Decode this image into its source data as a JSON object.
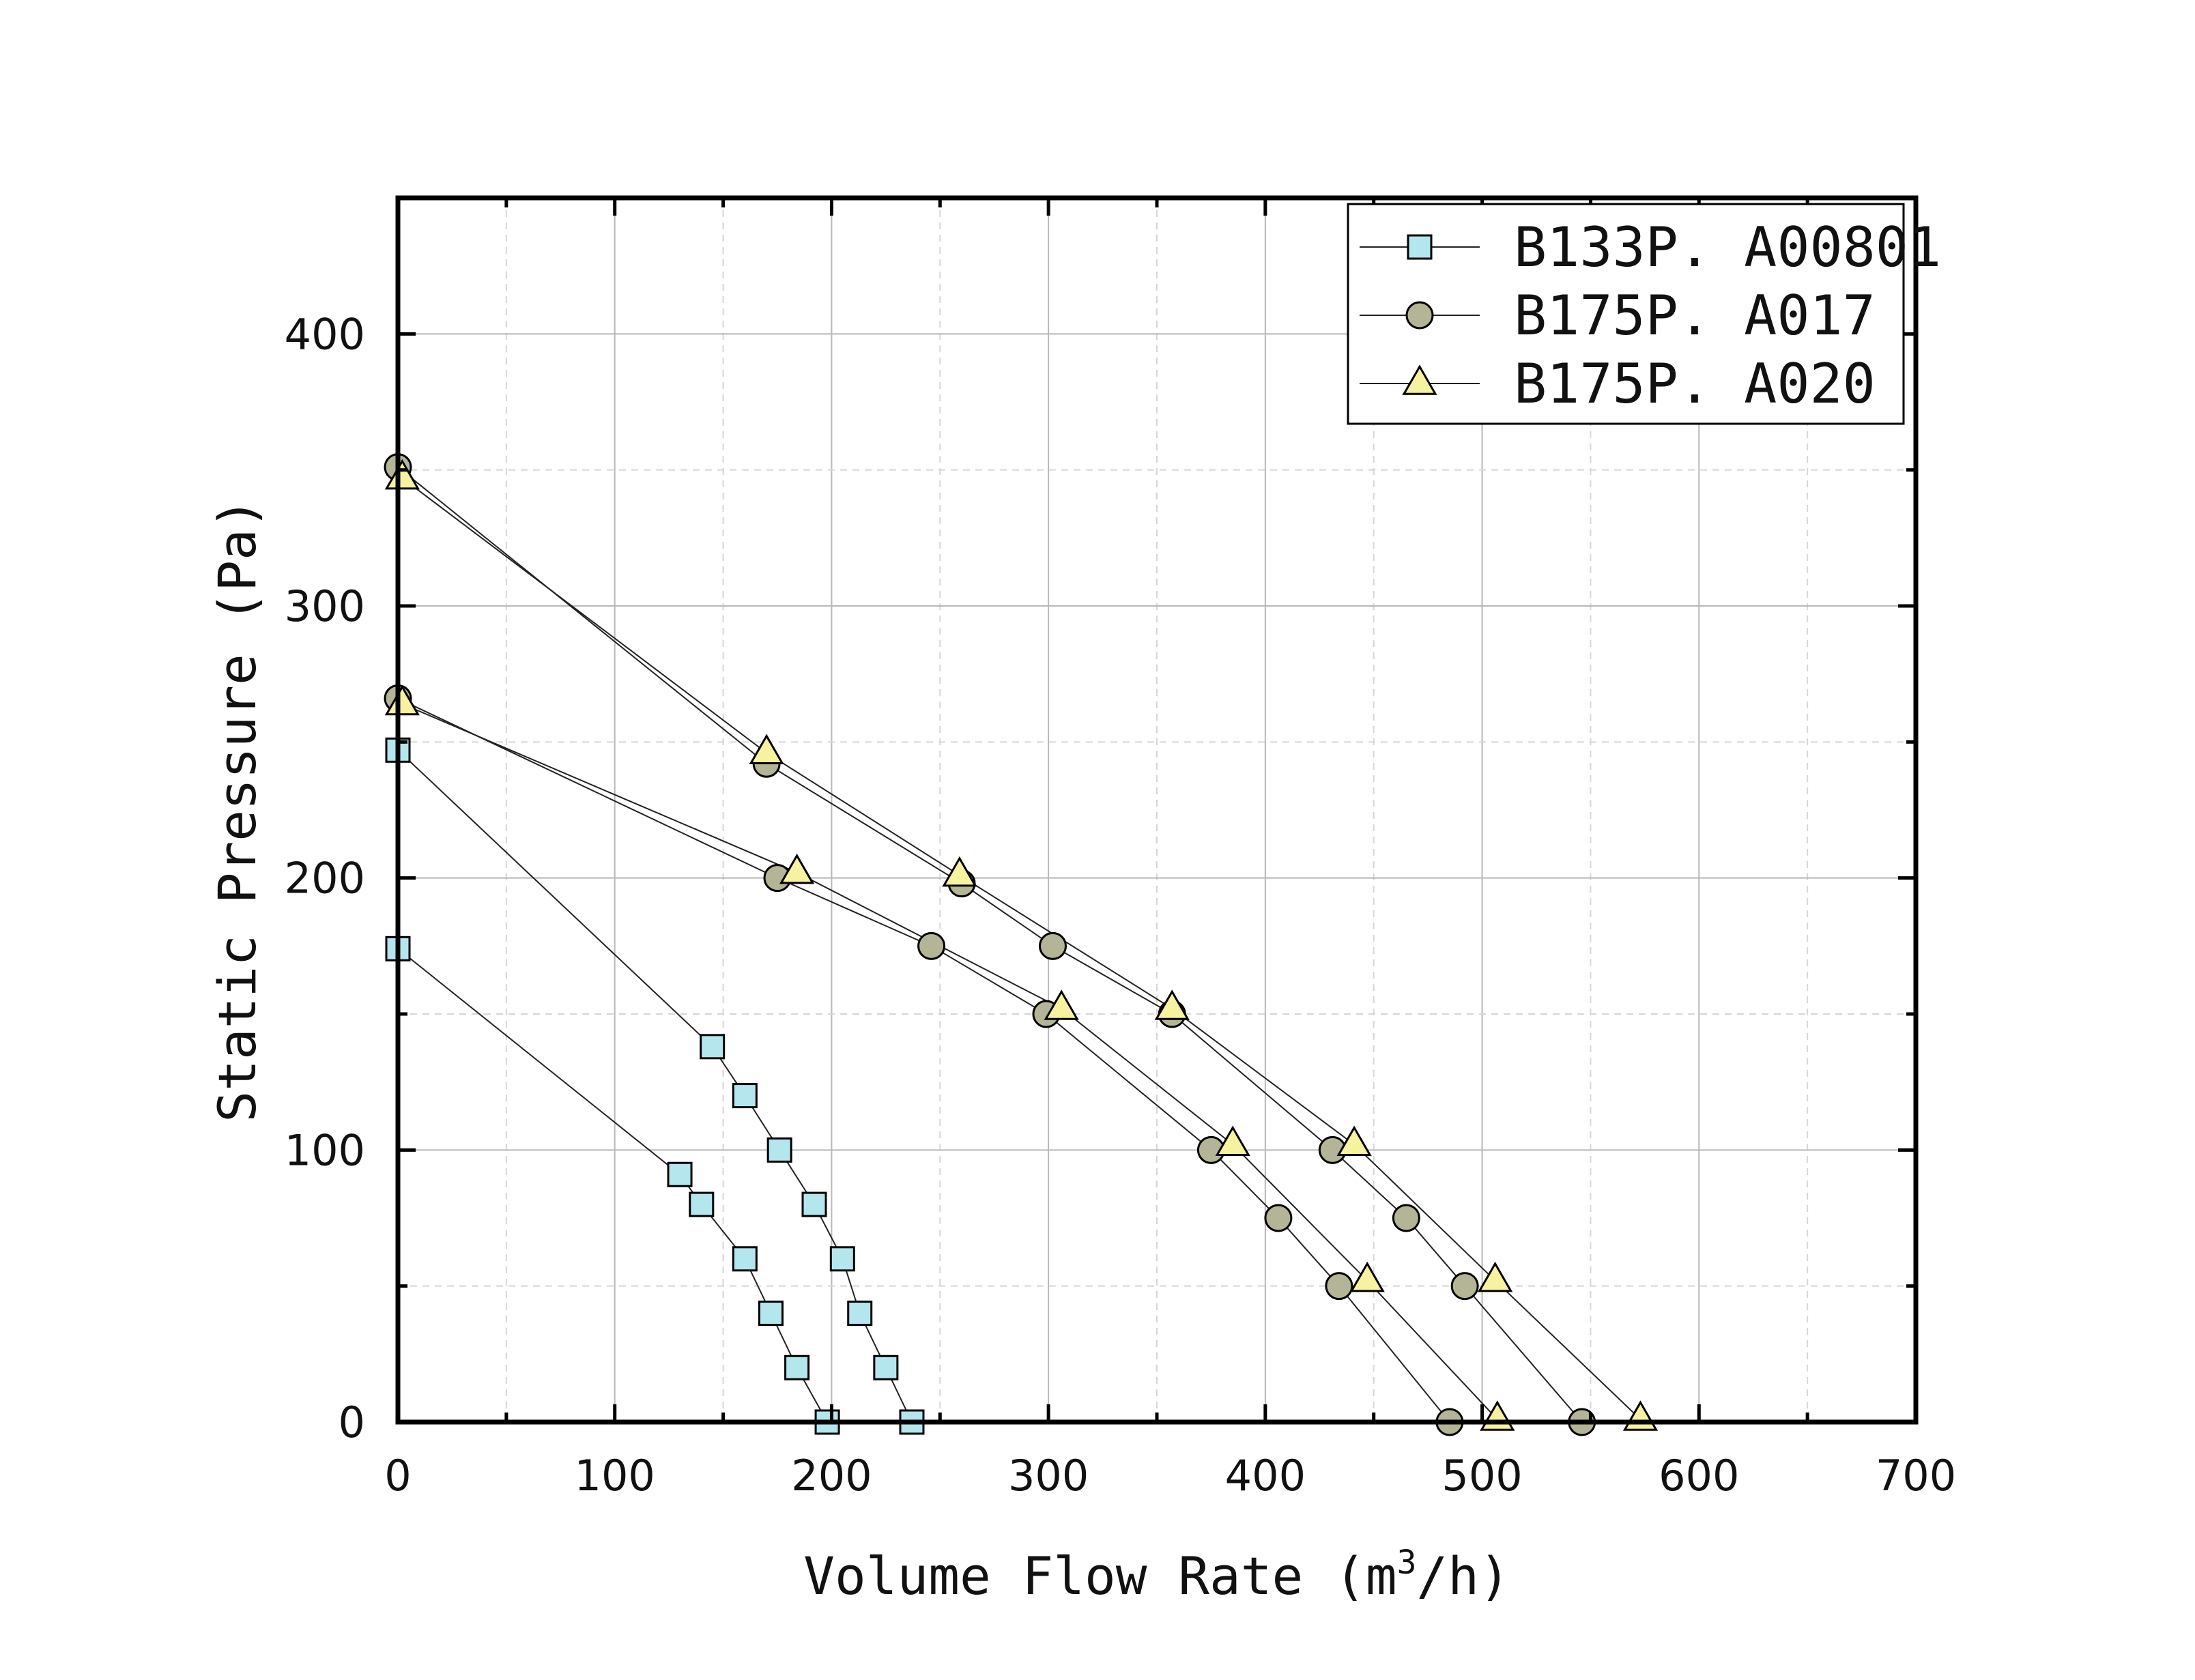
{
  "chart_data": {
    "type": "scatter",
    "title": "",
    "xlabel": "Volume Flow Rate (m",
    "xlabel_sup": "3",
    "xlabel_tail": "/h)",
    "ylabel": "Static Pressure (Pa)",
    "xlim": [
      0,
      700
    ],
    "ylim": [
      0,
      450
    ],
    "xticks": [
      "0",
      "100",
      "200",
      "300",
      "400",
      "500",
      "600",
      "700"
    ],
    "yticks": [
      "0",
      "100",
      "200",
      "300",
      "400"
    ],
    "grid": true,
    "legend_position": "top-right",
    "legend": [
      {
        "name": "B133P. A00801",
        "marker": "square",
        "color": "#b4e6ee"
      },
      {
        "name": "B175P. A017",
        "marker": "circle",
        "color": "#b4b496"
      },
      {
        "name": "B175P. A020",
        "marker": "triangle",
        "color": "#f6f2a0"
      }
    ],
    "series": [
      {
        "legend_index": 0,
        "marker": "square",
        "color": "#b4e6ee",
        "points": [
          [
            0,
            174
          ],
          [
            130,
            91
          ],
          [
            140,
            80
          ],
          [
            160,
            60
          ],
          [
            172,
            40
          ],
          [
            184,
            20
          ],
          [
            198,
            0
          ]
        ]
      },
      {
        "legend_index": 0,
        "marker": "square",
        "color": "#b4e6ee",
        "points": [
          [
            0,
            247
          ],
          [
            145,
            138
          ],
          [
            160,
            120
          ],
          [
            176,
            100
          ],
          [
            192,
            80
          ],
          [
            205,
            60
          ],
          [
            213,
            40
          ],
          [
            225,
            20
          ],
          [
            237,
            0
          ]
        ]
      },
      {
        "legend_index": 1,
        "marker": "circle",
        "color": "#b4b496",
        "points": [
          [
            0,
            351
          ],
          [
            170,
            242
          ],
          [
            260,
            198
          ],
          [
            302,
            175
          ],
          [
            357,
            150
          ],
          [
            431,
            100
          ],
          [
            465,
            75
          ],
          [
            492,
            50
          ],
          [
            546,
            0
          ]
        ]
      },
      {
        "legend_index": 2,
        "marker": "triangle",
        "color": "#f6f2a0",
        "points": [
          [
            2,
            347
          ],
          [
            170,
            246
          ],
          [
            259,
            201
          ],
          [
            357,
            152
          ],
          [
            441,
            102
          ],
          [
            506,
            52
          ],
          [
            573,
            1
          ]
        ]
      },
      {
        "legend_index": 1,
        "marker": "circle",
        "color": "#b4b496",
        "points": [
          [
            0,
            266
          ],
          [
            175,
            200
          ],
          [
            246,
            175
          ],
          [
            299,
            150
          ],
          [
            375,
            100
          ],
          [
            406,
            75
          ],
          [
            434,
            50
          ],
          [
            485,
            0
          ]
        ]
      },
      {
        "legend_index": 2,
        "marker": "triangle",
        "color": "#f6f2a0",
        "points": [
          [
            2,
            264
          ],
          [
            184,
            202
          ],
          [
            306,
            152
          ],
          [
            385,
            102
          ],
          [
            447,
            52
          ],
          [
            507,
            1
          ]
        ]
      }
    ]
  }
}
